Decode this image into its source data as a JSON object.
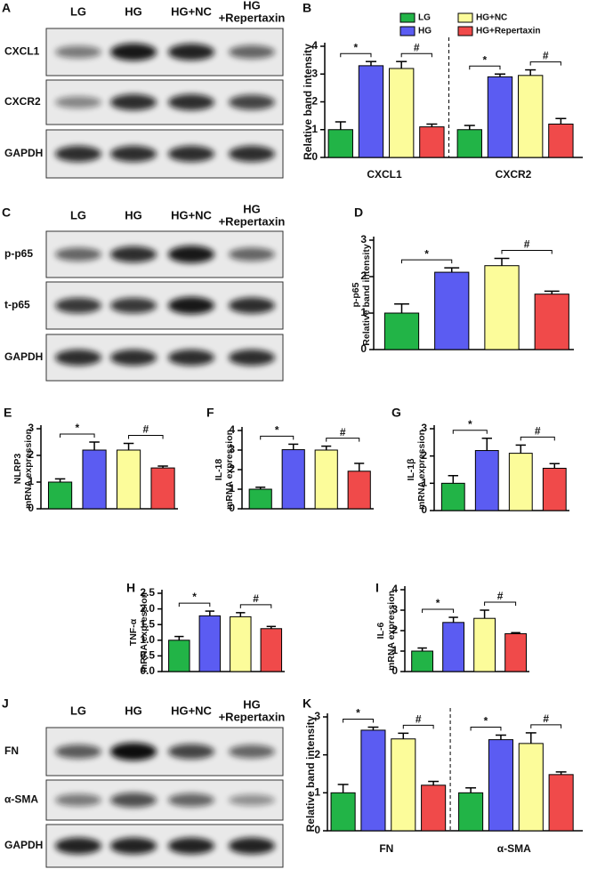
{
  "blots": [
    {
      "panel": "A",
      "columns": [
        "LG",
        "HG",
        "HG+NC",
        [
          "HG",
          "+Repertaxin"
        ]
      ],
      "rows": [
        "CXCL1",
        "CXCR2",
        "GAPDH"
      ]
    },
    {
      "panel": "C",
      "columns": [
        "LG",
        "HG",
        "HG+NC",
        [
          "HG",
          "+Repertaxin"
        ]
      ],
      "rows": [
        "p-p65",
        "t-p65",
        "GAPDH"
      ]
    },
    {
      "panel": "J",
      "columns": [
        "LG",
        "HG",
        "HG+NC",
        [
          "HG",
          "+Repertaxin"
        ]
      ],
      "rows": [
        "FN",
        "α-SMA",
        "GAPDH"
      ]
    }
  ],
  "chart_data": [
    {
      "type": "bar",
      "panel": "B",
      "ylabel": "Relative band intensity",
      "categories": [
        "CXCL1",
        "CXCR2"
      ],
      "series": [
        {
          "name": "LG",
          "color": "#22b447",
          "values": [
            1.0,
            1.0
          ],
          "errors": [
            0.28,
            0.15
          ]
        },
        {
          "name": "HG",
          "color": "#5b5cf2",
          "values": [
            3.3,
            2.9
          ],
          "errors": [
            0.15,
            0.1
          ]
        },
        {
          "name": "HG+NC",
          "color": "#fcfc9a",
          "values": [
            3.2,
            2.95
          ],
          "errors": [
            0.25,
            0.2
          ]
        },
        {
          "name": "HG+Repertaxin",
          "color": "#f04a4a",
          "values": [
            1.1,
            1.2
          ],
          "errors": [
            0.1,
            0.2
          ]
        }
      ],
      "annotations": [
        "*",
        "#"
      ],
      "legend": "top",
      "ylim": [
        0,
        4
      ],
      "yticks": [
        0,
        1,
        2,
        3,
        4
      ]
    },
    {
      "type": "bar",
      "panel": "D",
      "ylabel": [
        "p-p65",
        "Relative band intensity"
      ],
      "values": [
        1.0,
        2.12,
        2.3,
        1.52
      ],
      "errors": [
        0.25,
        0.12,
        0.2,
        0.08
      ],
      "colors": [
        "#22b447",
        "#5b5cf2",
        "#fcfc9a",
        "#f04a4a"
      ],
      "annotations": [
        "*",
        "#"
      ],
      "ylim": [
        0,
        3
      ],
      "yticks": [
        0,
        1,
        2,
        3
      ]
    },
    {
      "type": "bar",
      "panel": "E",
      "ylabel": [
        "NLRP3",
        "mRNA expression"
      ],
      "values": [
        1.0,
        2.2,
        2.2,
        1.53
      ],
      "errors": [
        0.12,
        0.3,
        0.25,
        0.07
      ],
      "colors": [
        "#22b447",
        "#5b5cf2",
        "#fcfc9a",
        "#f04a4a"
      ],
      "annotations": [
        "*",
        "#"
      ],
      "ylim": [
        0,
        3
      ],
      "yticks": [
        0,
        1,
        2,
        3
      ]
    },
    {
      "type": "bar",
      "panel": "F",
      "ylabel": [
        "IL-18",
        "mRNA expression"
      ],
      "values": [
        1.0,
        3.02,
        3.0,
        1.92
      ],
      "errors": [
        0.1,
        0.28,
        0.2,
        0.4
      ],
      "colors": [
        "#22b447",
        "#5b5cf2",
        "#fcfc9a",
        "#f04a4a"
      ],
      "annotations": [
        "*",
        "#"
      ],
      "ylim": [
        0,
        4
      ],
      "yticks": [
        0,
        1,
        2,
        3,
        4
      ]
    },
    {
      "type": "bar",
      "panel": "G",
      "ylabel": [
        "IL-1β",
        "mRNA expression"
      ],
      "values": [
        1.0,
        2.2,
        2.1,
        1.55
      ],
      "errors": [
        0.28,
        0.45,
        0.3,
        0.17
      ],
      "colors": [
        "#22b447",
        "#5b5cf2",
        "#fcfc9a",
        "#f04a4a"
      ],
      "annotations": [
        "*",
        "#"
      ],
      "ylim": [
        0,
        3
      ],
      "yticks": [
        0,
        1,
        2,
        3
      ]
    },
    {
      "type": "bar",
      "panel": "H",
      "ylabel": [
        "TNF-α",
        "mRNA expression"
      ],
      "values": [
        1.0,
        1.78,
        1.75,
        1.37
      ],
      "errors": [
        0.12,
        0.15,
        0.13,
        0.07
      ],
      "colors": [
        "#22b447",
        "#5b5cf2",
        "#fcfc9a",
        "#f04a4a"
      ],
      "annotations": [
        "*",
        "#"
      ],
      "ylim": [
        0,
        2.5
      ],
      "yticks": [
        {
          "value": 0,
          "label": "0.0"
        },
        0.5,
        {
          "value": 1,
          "label": "1.0"
        },
        1.5,
        {
          "value": 2,
          "label": "2.0"
        },
        2.5
      ]
    },
    {
      "type": "bar",
      "panel": "I",
      "ylabel": [
        "IL-6",
        "mRNA expression"
      ],
      "values": [
        1.0,
        2.4,
        2.6,
        1.85
      ],
      "errors": [
        0.15,
        0.25,
        0.4,
        0.05
      ],
      "colors": [
        "#22b447",
        "#5b5cf2",
        "#fcfc9a",
        "#f04a4a"
      ],
      "annotations": [
        "*",
        "#"
      ],
      "ylim": [
        0,
        4
      ],
      "yticks": [
        0,
        1,
        2,
        3,
        4
      ]
    },
    {
      "type": "bar",
      "panel": "K",
      "ylabel": "Relative band intensity",
      "categories": [
        "FN",
        "α-SMA"
      ],
      "series": [
        {
          "color": "#22b447",
          "values": [
            1.0,
            1.0
          ],
          "errors": [
            0.22,
            0.13
          ]
        },
        {
          "color": "#5b5cf2",
          "values": [
            2.65,
            2.4
          ],
          "errors": [
            0.08,
            0.12
          ]
        },
        {
          "color": "#fcfc9a",
          "values": [
            2.42,
            2.3
          ],
          "errors": [
            0.15,
            0.28
          ]
        },
        {
          "color": "#f04a4a",
          "values": [
            1.2,
            1.48
          ],
          "errors": [
            0.1,
            0.07
          ]
        }
      ],
      "annotations": [
        "*",
        "#"
      ],
      "ylim": [
        0,
        3
      ],
      "yticks": [
        0,
        1,
        2,
        3
      ]
    }
  ]
}
